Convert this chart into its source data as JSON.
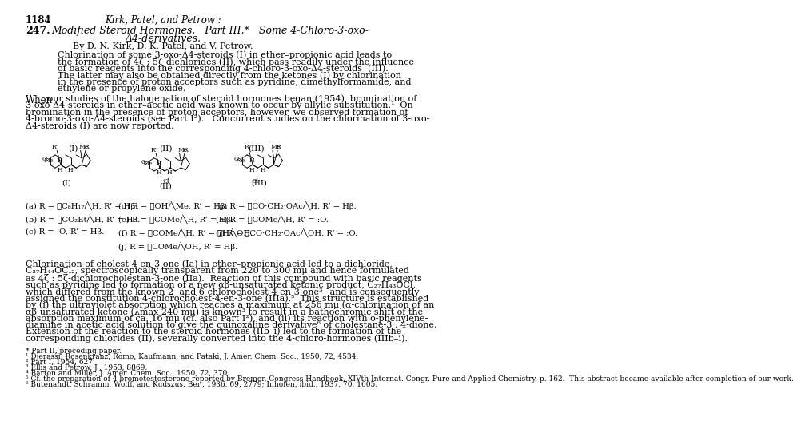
{
  "page_number": "1184",
  "header_italic": "Kirk, Patel, and Petrow :",
  "article_number": "247.",
  "title_line1": "Modified Steroid Hormones.   Part III.*   Some 4-Chloro-3-oxo-",
  "title_line2": "Δ4-derivatives.",
  "byline": "By D. N. Kirk, D. K. Patel, and V. Petrow.",
  "abstract": "Chlorination of some 3-oxo-Δ4-steroids (I) in ether–propionic acid leads to\nthe formation of 4ζ : 5ζ-dichlorides (II), which pass readily under the influence\nof basic reagents into the corresponding 4-chloro-3-oxo-Δ4-steroids  (III).\nThe latter may also be obtained directly from the ketones (I) by chlorination\nin the presence of proton acceptors such as pyridine, dimethylformamide, and\nethylene or propylene oxide.",
  "para1": "When our studies of the halogenation of steroid hormones began (1954), bromination of\n3-oxo-Δ4-steroids in ether–acetic acid was known to occur by allylic substitution.¹  On\nbromination in the presence of proton acceptors, however, we observed formation of\n4-bromo-3-oxo-Δ4-steroids (see Part I²).   Concurrent studies on the chlorination of 3-oxo-\nΔ4-steroids (I) are now reported.",
  "para2": "Chlorination of cholest-4-en-3-one (Ia) in ether–propionic acid led to a dichloride,\nC₂₇H₄₄OCl₂, spectroscopically transparent from 220 to 300 mμ and hence formulated\nas 4ζ : 5ζ-dichlorocholestan-3-one (IIa).  Reaction of this compound with basic reagents\nsuch as pyridine led to formation of a new αβ-unsaturated ketonic product, C₂₇H₄₃OCl,\nwhich differed from the known 2- and 6-chlorocholest-4-en-3-one³´ and is consequently\nassigned the constitution 4-chlorocholest-4-en-3-one (IIIa).⁵  This structure is established\nby (i) the ultraviolet absorption which reaches a maximum at 256 mμ (α-chlorination of an\nαβ-unsaturated ketone (λmax 240 mμ) is known³ to result in a bathochromic shift of the\nabsorption maximum of ca. 16 mμ (cf. also Part I²), and (ii) its reaction with o-phenylene-\ndiamine in acetic acid solution to give the quinoxaline derivative⁶ of cholestane-3 : 4-dione.\nExtension of the reaction to the steroid hormones (IIb–i) led to the formation of the\ncorresponding chlorides (II), severally converted into the 4-chloro-hormones (IIIb–i).",
  "footnotes": "* Part II, preceding paper.\n¹ Djerassi, Rosenkranz, Romo, Kaufmann, and Pataki, J. Amer. Chem. Soc., 1950, 72, 4534.\n² Part I, 1954, 627.\n³ Ellis and Petrow, J., 1953, 8869.\n⁴ Barton and Miller, J. Amer. Chem. Soc., 1950, 72, 370.\n⁵ Cf. the preparation of 4-bromotestosterone reported by Bremer, Congress Handbook, XIVth Internat. Congr. Pure and Applied Chemistry, p. 162.  This abstract became available after completion of our work.\n⁶ Butenandt, Schramm, Wolff, and Kudszus, Ber., 1936, 69, 2779; Inhofen, ibid., 1937, 70, 1605.",
  "bg_color": "#ffffff",
  "text_color": "#000000"
}
